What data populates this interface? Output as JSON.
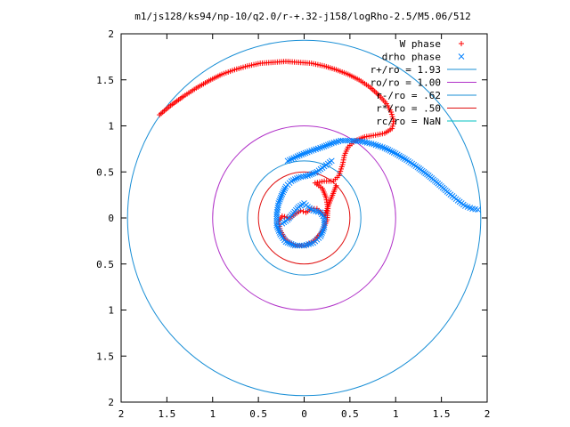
{
  "chart_data": {
    "type": "scatter",
    "title": "m1/js128/ks94/np-10/q2.0/r-+.32-j158/logRho-2.5/M5.06/512",
    "xlabel": "",
    "ylabel": "",
    "xlim": [
      -2,
      2
    ],
    "ylim": [
      -2,
      2
    ],
    "x_ticks": [
      -2,
      -1.5,
      -1,
      -0.5,
      0,
      0.5,
      1,
      1.5,
      2
    ],
    "y_ticks": [
      -2,
      -1.5,
      -1,
      -0.5,
      0,
      0.5,
      1,
      1.5,
      2
    ],
    "x_tick_labels": [
      "2",
      "1.5",
      "1",
      "0.5",
      "0",
      "0.5",
      "1",
      "1.5",
      "2"
    ],
    "y_tick_labels": [
      "2",
      "1.5",
      "1",
      "0.5",
      "0",
      "0.5",
      "1",
      "1.5",
      "2"
    ],
    "grid": false,
    "legend_position": "top-right",
    "legend": [
      {
        "label": "W phase",
        "marker": "+",
        "color": "#ff0000"
      },
      {
        "label": "drho phase",
        "marker": "x",
        "color": "#0080ff"
      },
      {
        "label": "r+/ro = 1.93",
        "line": true,
        "color": "#1a8fd6"
      },
      {
        "label": "ro/ro = 1.00",
        "line": true,
        "color": "#b030c8"
      },
      {
        "label": "r-/ro = .62",
        "line": true,
        "color": "#1a8fd6"
      },
      {
        "label": "r*/ro = .50",
        "line": true,
        "color": "#e01010"
      },
      {
        "label": "rc/ro = NaN",
        "line": true,
        "color": "#00c0c0"
      }
    ],
    "circles": [
      {
        "radius": 1.93,
        "color": "#1a8fd6"
      },
      {
        "radius": 1.0,
        "color": "#b030c8"
      },
      {
        "radius": 0.62,
        "color": "#1a8fd6"
      },
      {
        "radius": 0.5,
        "color": "#e01010"
      }
    ],
    "series": [
      {
        "name": "W phase",
        "marker": "+",
        "color": "#ff0000",
        "points": [
          [
            -1.58,
            1.12
          ],
          [
            -1.46,
            1.22
          ],
          [
            -1.32,
            1.32
          ],
          [
            -1.18,
            1.41
          ],
          [
            -1.04,
            1.49
          ],
          [
            -0.9,
            1.56
          ],
          [
            -0.76,
            1.61
          ],
          [
            -0.62,
            1.65
          ],
          [
            -0.48,
            1.68
          ],
          [
            -0.34,
            1.69
          ],
          [
            -0.2,
            1.7
          ],
          [
            -0.06,
            1.69
          ],
          [
            0.08,
            1.68
          ],
          [
            0.22,
            1.65
          ],
          [
            0.35,
            1.61
          ],
          [
            0.48,
            1.56
          ],
          [
            0.6,
            1.5
          ],
          [
            0.72,
            1.42
          ],
          [
            0.82,
            1.33
          ],
          [
            0.9,
            1.24
          ],
          [
            0.95,
            1.15
          ],
          [
            0.98,
            1.05
          ],
          [
            0.96,
            0.97
          ],
          [
            0.88,
            0.92
          ],
          [
            0.78,
            0.9
          ],
          [
            0.66,
            0.88
          ],
          [
            0.56,
            0.84
          ],
          [
            0.48,
            0.77
          ],
          [
            0.44,
            0.68
          ],
          [
            0.42,
            0.58
          ],
          [
            0.38,
            0.46
          ],
          [
            0.32,
            0.4
          ],
          [
            0.22,
            0.4
          ],
          [
            0.12,
            0.38
          ],
          [
            0.2,
            0.32
          ],
          [
            0.24,
            0.22
          ],
          [
            0.26,
            0.1
          ],
          [
            0.25,
            -0.02
          ],
          [
            0.2,
            -0.14
          ],
          [
            0.12,
            -0.24
          ],
          [
            0.02,
            -0.3
          ],
          [
            -0.1,
            -0.3
          ],
          [
            -0.2,
            -0.24
          ],
          [
            -0.26,
            -0.14
          ],
          [
            -0.28,
            -0.04
          ],
          [
            -0.24,
            0.02
          ],
          [
            -0.16,
            0.0
          ],
          [
            -0.1,
            0.04
          ],
          [
            -0.04,
            0.08
          ],
          [
            0.02,
            0.06
          ],
          [
            0.08,
            0.1
          ],
          [
            0.14,
            0.1
          ],
          [
            0.2,
            0.04
          ],
          [
            0.22,
            0.02
          ],
          [
            0.35,
            0.35
          ]
        ]
      },
      {
        "name": "drho phase",
        "marker": "x",
        "color": "#0080ff",
        "points": [
          [
            -0.18,
            0.62
          ],
          [
            -0.05,
            0.68
          ],
          [
            0.08,
            0.73
          ],
          [
            0.2,
            0.77
          ],
          [
            0.3,
            0.81
          ],
          [
            0.4,
            0.84
          ],
          [
            0.52,
            0.84
          ],
          [
            0.64,
            0.83
          ],
          [
            0.76,
            0.8
          ],
          [
            0.88,
            0.76
          ],
          [
            1.0,
            0.7
          ],
          [
            1.12,
            0.63
          ],
          [
            1.24,
            0.55
          ],
          [
            1.36,
            0.46
          ],
          [
            1.48,
            0.36
          ],
          [
            1.58,
            0.27
          ],
          [
            1.68,
            0.19
          ],
          [
            1.76,
            0.13
          ],
          [
            1.84,
            0.1
          ],
          [
            1.9,
            0.09
          ],
          [
            0.3,
            0.62
          ],
          [
            0.22,
            0.56
          ],
          [
            0.14,
            0.5
          ],
          [
            0.04,
            0.46
          ],
          [
            -0.06,
            0.44
          ],
          [
            -0.14,
            0.4
          ],
          [
            -0.2,
            0.34
          ],
          [
            -0.24,
            0.26
          ],
          [
            -0.28,
            0.16
          ],
          [
            -0.3,
            0.04
          ],
          [
            -0.3,
            -0.08
          ],
          [
            -0.26,
            -0.18
          ],
          [
            -0.2,
            -0.26
          ],
          [
            -0.1,
            -0.3
          ],
          [
            0.0,
            -0.3
          ],
          [
            0.1,
            -0.27
          ],
          [
            0.18,
            -0.2
          ],
          [
            0.22,
            -0.1
          ],
          [
            0.22,
            0.0
          ],
          [
            0.18,
            0.06
          ],
          [
            0.1,
            0.08
          ],
          [
            0.04,
            0.12
          ],
          [
            0.0,
            0.16
          ],
          [
            -0.06,
            0.12
          ],
          [
            -0.12,
            0.05
          ],
          [
            -0.18,
            -0.02
          ],
          [
            -0.24,
            -0.06
          ]
        ]
      }
    ]
  }
}
